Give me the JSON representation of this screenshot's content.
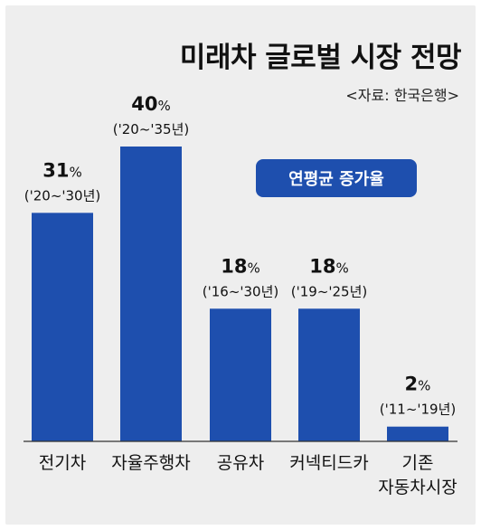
{
  "colors": {
    "bar": "#1e4fae",
    "badge": "#1e4fae",
    "background": "#eeeeee",
    "baseline": "#333333"
  },
  "header": {
    "title": "미래차 글로벌 시장 전망",
    "source": "<자료: 한국은행>"
  },
  "legend": {
    "label": "연평균 증가율"
  },
  "chart_data": {
    "type": "bar",
    "title": "미래차 글로벌 시장 전망",
    "source": "<자료: 한국은행>",
    "legend": "연평균 증가율",
    "unit": "%",
    "categories": [
      [
        "전기차"
      ],
      [
        "자율주행차"
      ],
      [
        "공유차"
      ],
      [
        "커넥티드카"
      ],
      [
        "기존",
        "자동차시장"
      ]
    ],
    "values": [
      31,
      40,
      18,
      18,
      2
    ],
    "periods": [
      "('20~'30년)",
      "('20~'35년)",
      "('16~'30년)",
      "('19~'25년)",
      "('11~'19년)"
    ],
    "ylim": [
      0,
      40
    ],
    "grid": false
  }
}
